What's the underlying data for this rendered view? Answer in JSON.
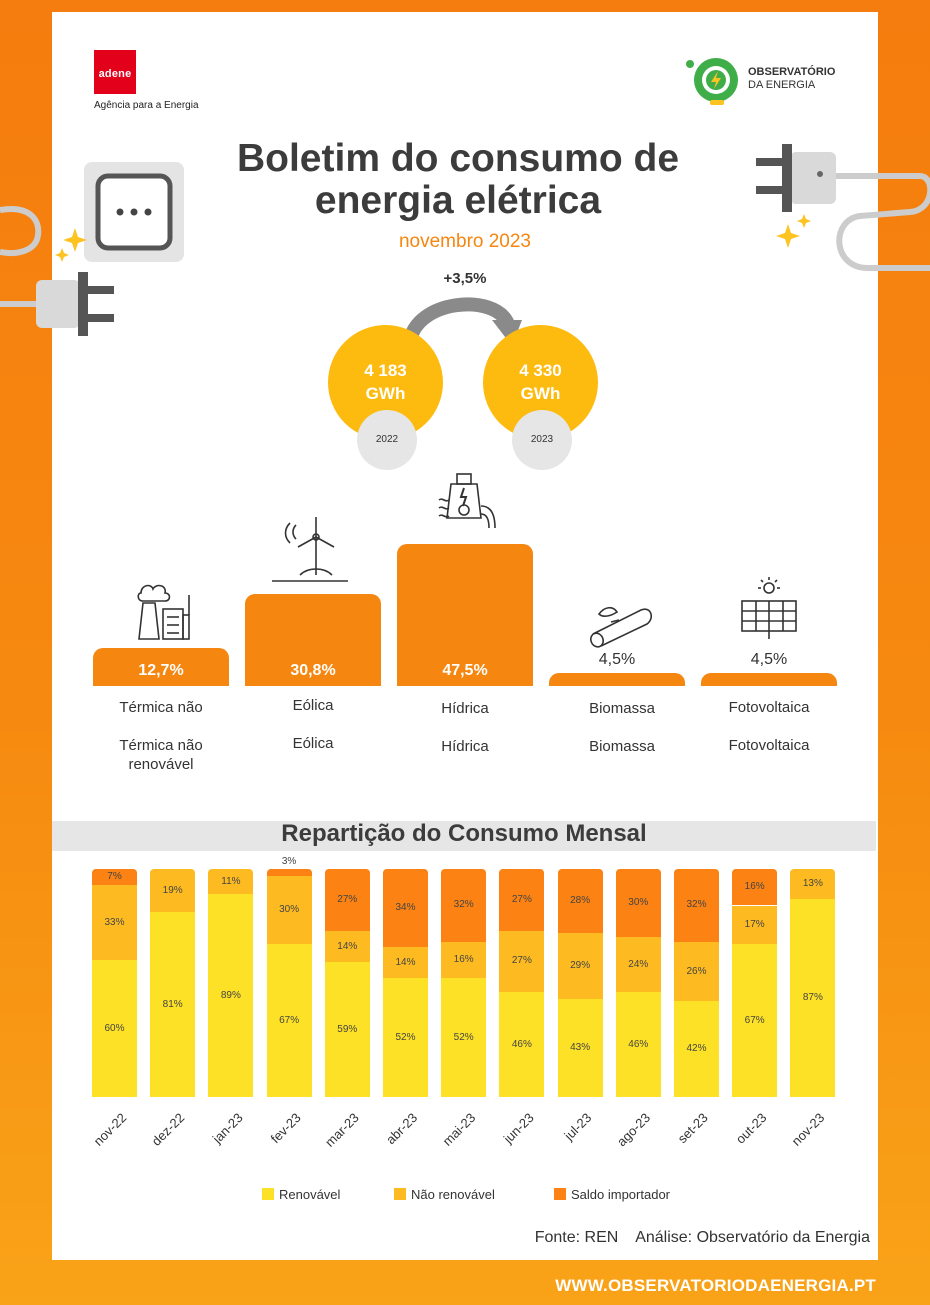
{
  "header": {
    "adene_word": "adene",
    "adene_tagline": "Agência para a Energia",
    "obs_line1": "OBSERVATÓRIO",
    "obs_line2": "DA ENERGIA",
    "title": "Boletim do consumo de energia elétrica",
    "subtitle": "novembro 2023"
  },
  "consumption": {
    "growth": "+3,5%",
    "prev_value": "4 183",
    "prev_unit": "GWh",
    "prev_year": "2022",
    "curr_value": "4 330",
    "curr_unit": "GWh",
    "curr_year": "2023"
  },
  "sources": [
    {
      "value": "12,7%",
      "pct": 12.7,
      "label1": "Térmica não",
      "label2": "Térmica não renovável"
    },
    {
      "value": "30,8%",
      "pct": 30.8,
      "label1": "Eólica",
      "label2": "Eólica"
    },
    {
      "value": "47,5%",
      "pct": 47.5,
      "label1": "Hídrica",
      "label2": "Hídrica"
    },
    {
      "value": "4,5%",
      "pct": 4.5,
      "label1": "Biomassa",
      "label2": "Biomassa"
    },
    {
      "value": "4,5%",
      "pct": 4.5,
      "label1": "Fotovoltaica",
      "label2": "Fotovoltaica"
    }
  ],
  "colors": {
    "orange": "#f5860f",
    "renovavel": "#fde126",
    "nao_renovavel": "#fdbb21",
    "saldo": "#fb8213",
    "circle": "#fdbb10"
  },
  "chart_data": {
    "type": "bar",
    "stacked": true,
    "normalized": true,
    "title": "Repartição do Consumo Mensal",
    "categories": [
      "nov-22",
      "dez-22",
      "jan-23",
      "fev-23",
      "mar-23",
      "abr-23",
      "mai-23",
      "jun-23",
      "jul-23",
      "ago-23",
      "set-23",
      "out-23",
      "nov-23"
    ],
    "series": [
      {
        "name": "Renovável",
        "values": [
          60,
          81,
          89,
          67,
          59,
          52,
          52,
          46,
          43,
          46,
          42,
          67,
          87
        ]
      },
      {
        "name": "Não renovável",
        "values": [
          33,
          19,
          11,
          30,
          14,
          14,
          16,
          27,
          29,
          24,
          26,
          17,
          13
        ]
      },
      {
        "name": "Saldo importador",
        "values": [
          7,
          0,
          0,
          3,
          27,
          34,
          32,
          27,
          28,
          30,
          32,
          16,
          0
        ]
      }
    ],
    "legend": "bottom"
  },
  "footer": {
    "source": "Fonte: REN    Análise: Observatório da Energia",
    "website": "WWW.OBSERVATORIODAENERGIA.PT"
  }
}
